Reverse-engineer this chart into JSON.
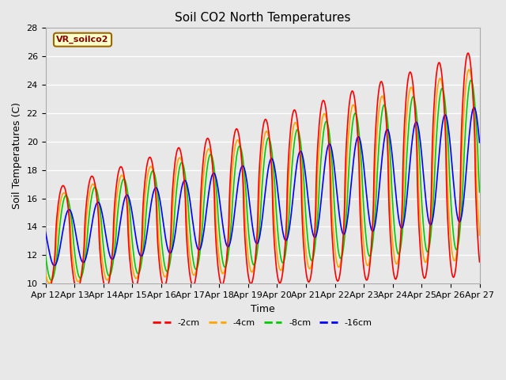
{
  "title": "Soil CO2 North Temperatures",
  "xlabel": "Time",
  "ylabel": "Soil Temperatures (C)",
  "ylim": [
    10,
    28
  ],
  "xlim": [
    0,
    360
  ],
  "tick_labels": [
    "Apr 12",
    "Apr 13",
    "Apr 14",
    "Apr 15",
    "Apr 16",
    "Apr 17",
    "Apr 18",
    "Apr 19",
    "Apr 20",
    "Apr 21",
    "Apr 22",
    "Apr 23",
    "Apr 24",
    "Apr 25",
    "Apr 26",
    "Apr 27"
  ],
  "legend_entries": [
    "-2cm",
    "-4cm",
    "-8cm",
    "-16cm"
  ],
  "legend_colors": [
    "#ff0000",
    "#ffa500",
    "#00cc00",
    "#0000ff"
  ],
  "box_label": "VR_soilco2",
  "box_facecolor": "#ffffcc",
  "box_edgecolor": "#996600",
  "plot_bg_color": "#e8e8e8",
  "grid_color": "#ffffff",
  "title_fontsize": 11,
  "axis_fontsize": 9,
  "tick_fontsize": 8,
  "line_width": 1.2,
  "n_points": 721
}
